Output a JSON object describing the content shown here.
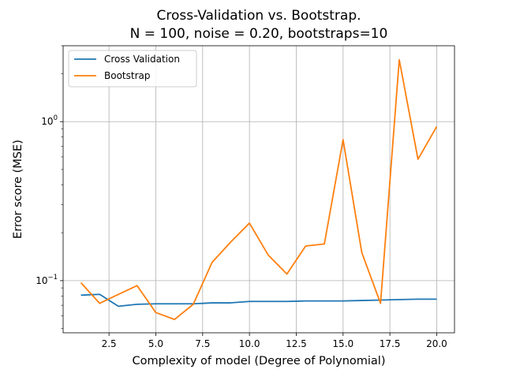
{
  "chart_data": {
    "type": "line",
    "title": "Cross-Validation vs. Bootstrap.",
    "subtitle": "N = 100, noise = 0.20, bootstraps=10",
    "xlabel": "Complexity of model (Degree of Polynomial)",
    "ylabel": "Error score (MSE)",
    "xlim": [
      0.05,
      20.95
    ],
    "ylim": [
      0.047,
      3.0
    ],
    "yscale": "log",
    "grid": true,
    "legend_position": "top-left",
    "x_ticks": [
      2.5,
      5.0,
      7.5,
      10.0,
      12.5,
      15.0,
      17.5,
      20.0
    ],
    "x_tick_labels": [
      "2.5",
      "5.0",
      "7.5",
      "10.0",
      "12.5",
      "15.0",
      "17.5",
      "20.0"
    ],
    "y_major_ticks": [
      0.1,
      1
    ],
    "y_major_tick_labels": [
      {
        "base": "10",
        "exp": "−1"
      },
      {
        "base": "10",
        "exp": "0"
      }
    ],
    "y_minor_ticks": [
      0.05,
      0.06,
      0.07,
      0.08,
      0.09,
      0.2,
      0.3,
      0.4,
      0.5,
      0.6,
      0.7,
      0.8,
      0.9,
      2,
      3
    ],
    "x": [
      1,
      2,
      3,
      4,
      5,
      6,
      7,
      8,
      9,
      10,
      11,
      12,
      13,
      14,
      15,
      16,
      17,
      18,
      19,
      20
    ],
    "series": [
      {
        "name": "Cross Validation",
        "color": "#1f77b4",
        "values": [
          0.081,
          0.082,
          0.069,
          0.071,
          0.0715,
          0.0715,
          0.0715,
          0.0725,
          0.0725,
          0.074,
          0.074,
          0.074,
          0.0745,
          0.0745,
          0.0745,
          0.075,
          0.0755,
          0.076,
          0.0765,
          0.0765
        ]
      },
      {
        "name": "Bootstrap",
        "color": "#ff7f0e",
        "values": [
          0.097,
          0.072,
          0.082,
          0.093,
          0.063,
          0.057,
          0.071,
          0.13,
          0.175,
          0.23,
          0.145,
          0.11,
          0.165,
          0.17,
          0.77,
          0.15,
          0.072,
          2.45,
          0.58,
          0.93
        ]
      }
    ]
  }
}
